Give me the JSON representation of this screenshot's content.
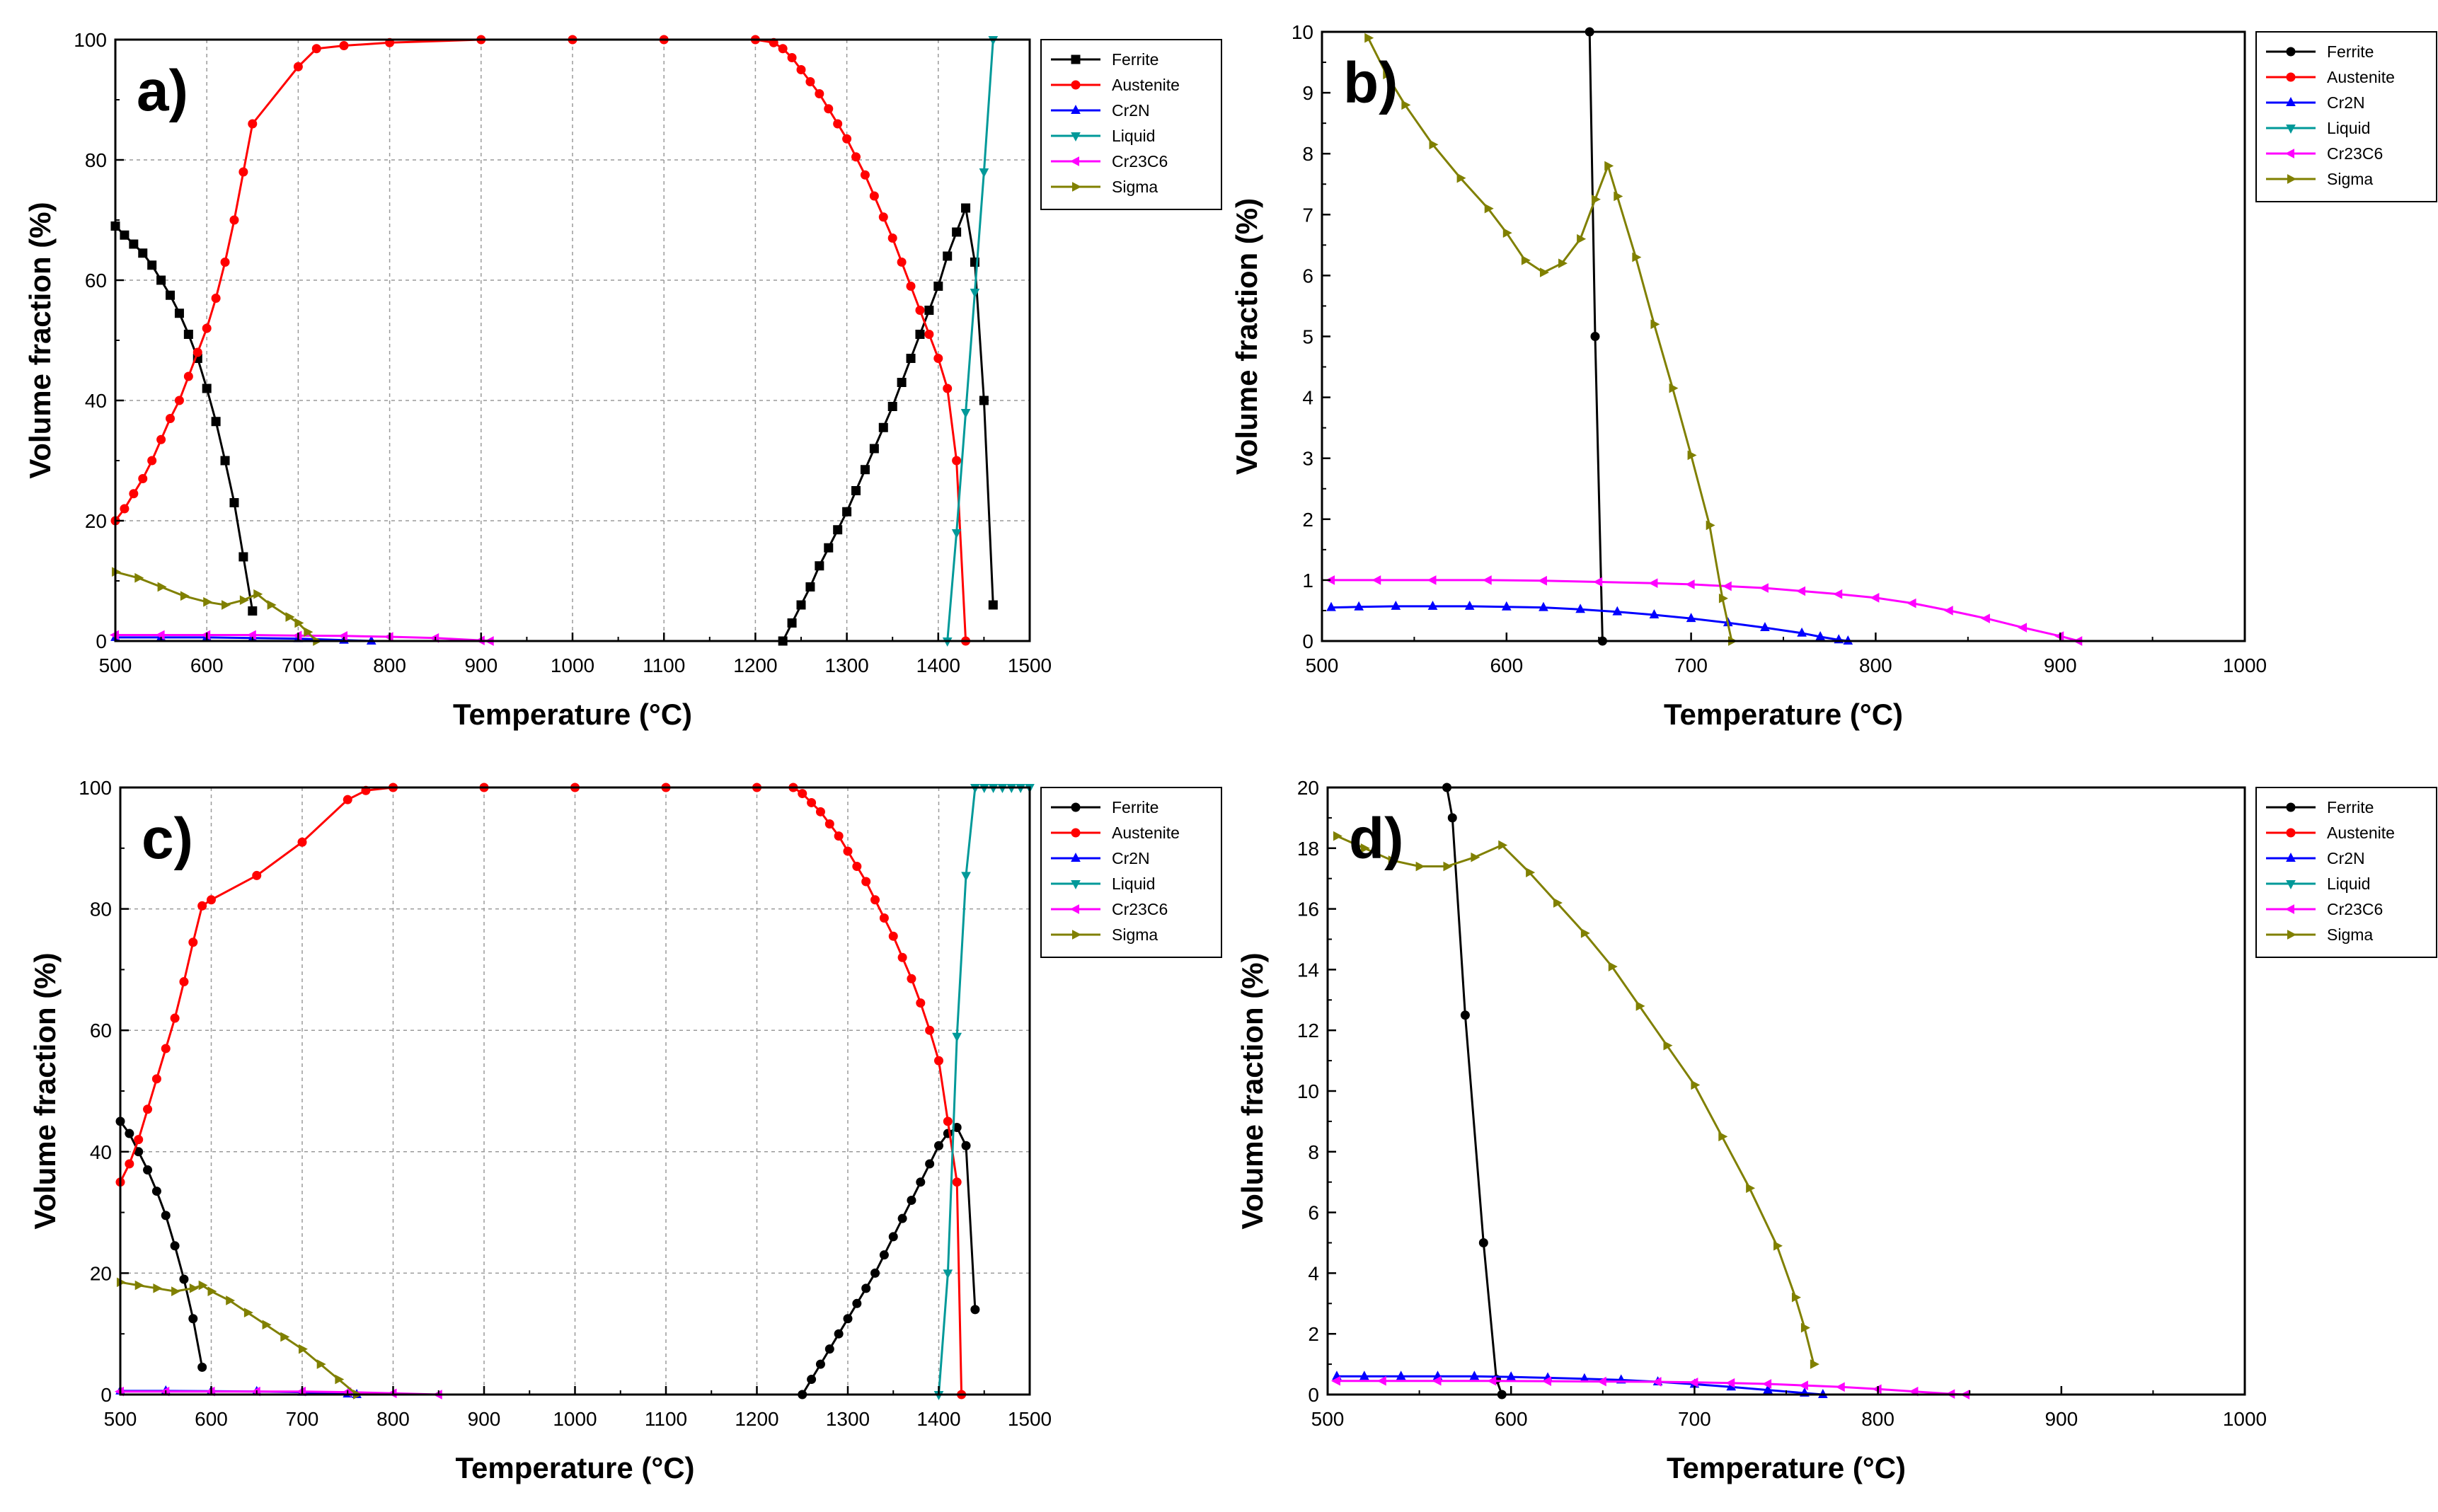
{
  "figure": {
    "background": "#ffffff"
  },
  "chart_data": [
    {
      "panel": "a)",
      "type": "line",
      "xlabel": "Temperature (°C)",
      "ylabel": "Volume fraction (%)",
      "xlim": [
        500,
        1500
      ],
      "ylim": [
        0,
        100
      ],
      "xticks": [
        "500",
        "600",
        "700",
        "800",
        "900",
        "1000",
        "1100",
        "1200",
        "1300",
        "1400",
        "1500"
      ],
      "yticks": [
        "0",
        "20",
        "40",
        "60",
        "80",
        "100"
      ],
      "grid": true,
      "legend_position": "top-right",
      "series": [
        {
          "name": "Ferrite",
          "color": "#000000",
          "marker": "square",
          "x": [
            500,
            510,
            520,
            530,
            540,
            550,
            560,
            570,
            580,
            590,
            600,
            610,
            620,
            630,
            640,
            650
          ],
          "y": [
            69,
            67.5,
            66,
            64.5,
            62.5,
            60,
            57.5,
            54.5,
            51,
            47,
            42,
            36.5,
            30,
            23,
            14,
            5
          ]
        },
        {
          "name": "Ferrite",
          "color": "#000000",
          "marker": "square",
          "x": [
            1230,
            1240,
            1250,
            1260,
            1270,
            1280,
            1290,
            1300,
            1310,
            1320,
            1330,
            1340,
            1350,
            1360,
            1370,
            1380,
            1390,
            1400,
            1410,
            1420,
            1430,
            1440,
            1450,
            1460
          ],
          "y": [
            0,
            3,
            6,
            9,
            12.5,
            15.5,
            18.5,
            21.5,
            25,
            28.5,
            32,
            35.5,
            39,
            43,
            47,
            51,
            55,
            59,
            64,
            68,
            72,
            63,
            40,
            6
          ]
        },
        {
          "name": "Austenite",
          "color": "#ff0000",
          "marker": "circle",
          "x": [
            500,
            510,
            520,
            530,
            540,
            550,
            560,
            570,
            580,
            590,
            600,
            610,
            620,
            630,
            640,
            650,
            700,
            720,
            750,
            800,
            900,
            1000,
            1100,
            1200,
            1220,
            1230,
            1240,
            1250,
            1260,
            1270,
            1280,
            1290,
            1300,
            1310,
            1320,
            1330,
            1340,
            1350,
            1360,
            1370,
            1380,
            1390,
            1400,
            1410,
            1420,
            1430
          ],
          "y": [
            20,
            22,
            24.5,
            27,
            30,
            33.5,
            37,
            40,
            44,
            48,
            52,
            57,
            63,
            70,
            78,
            86,
            95.5,
            98.5,
            99,
            99.5,
            100,
            100,
            100,
            100,
            99.5,
            98.5,
            97,
            95,
            93,
            91,
            88.5,
            86,
            83.5,
            80.5,
            77.5,
            74,
            70.5,
            67,
            63,
            59,
            55,
            51,
            47,
            42,
            30,
            0
          ]
        },
        {
          "name": "Cr2N",
          "color": "#0000ff",
          "marker": "triangle-up",
          "x": [
            500,
            550,
            600,
            650,
            700,
            750,
            780
          ],
          "y": [
            0.6,
            0.6,
            0.6,
            0.5,
            0.4,
            0.15,
            0
          ]
        },
        {
          "name": "Liquid",
          "color": "#009999",
          "marker": "triangle-down",
          "x": [
            1410,
            1420,
            1430,
            1440,
            1450,
            1460
          ],
          "y": [
            0,
            18,
            38,
            58,
            78,
            100
          ]
        },
        {
          "name": "Cr23C6",
          "color": "#ff00ff",
          "marker": "triangle-left",
          "x": [
            500,
            550,
            600,
            650,
            700,
            750,
            800,
            850,
            900,
            910
          ],
          "y": [
            1,
            1,
            1,
            1,
            0.9,
            0.85,
            0.7,
            0.5,
            0.1,
            0
          ]
        },
        {
          "name": "Sigma",
          "color": "#808000",
          "marker": "triangle-right",
          "x": [
            500,
            525,
            550,
            575,
            600,
            620,
            640,
            655,
            670,
            690,
            700,
            710,
            720
          ],
          "y": [
            11.5,
            10.5,
            9,
            7.5,
            6.5,
            6,
            6.8,
            7.8,
            6,
            4,
            3,
            1.5,
            0
          ]
        }
      ]
    },
    {
      "panel": "b)",
      "type": "line",
      "xlabel": "Temperature (°C)",
      "ylabel": "Volume fraction (%)",
      "xlim": [
        500,
        1000
      ],
      "ylim": [
        0,
        10
      ],
      "xticks": [
        "500",
        "600",
        "700",
        "800",
        "900",
        "1000"
      ],
      "yticks": [
        "0",
        "1",
        "2",
        "3",
        "4",
        "5",
        "6",
        "7",
        "8",
        "9",
        "10"
      ],
      "grid": false,
      "legend_position": "top-right",
      "series": [
        {
          "name": "Ferrite",
          "color": "#000000",
          "marker": "circle",
          "x": [
            645,
            648,
            652
          ],
          "y": [
            10,
            5,
            0
          ]
        },
        {
          "name": "Austenite",
          "color": "#ff0000",
          "marker": "circle",
          "x": [],
          "y": []
        },
        {
          "name": "Cr2N",
          "color": "#0000ff",
          "marker": "triangle-up",
          "x": [
            505,
            520,
            540,
            560,
            580,
            600,
            620,
            640,
            660,
            680,
            700,
            720,
            740,
            760,
            770,
            780,
            785
          ],
          "y": [
            0.55,
            0.56,
            0.57,
            0.57,
            0.57,
            0.56,
            0.55,
            0.52,
            0.48,
            0.43,
            0.37,
            0.3,
            0.22,
            0.13,
            0.07,
            0.02,
            0
          ]
        },
        {
          "name": "Liquid",
          "color": "#009999",
          "marker": "triangle-down",
          "x": [],
          "y": []
        },
        {
          "name": "Cr23C6",
          "color": "#ff00ff",
          "marker": "triangle-left",
          "x": [
            505,
            530,
            560,
            590,
            620,
            650,
            680,
            700,
            720,
            740,
            760,
            780,
            800,
            820,
            840,
            860,
            880,
            900,
            910
          ],
          "y": [
            1,
            1,
            1,
            1,
            0.99,
            0.97,
            0.95,
            0.93,
            0.9,
            0.87,
            0.82,
            0.77,
            0.71,
            0.62,
            0.5,
            0.37,
            0.22,
            0.08,
            0
          ]
        },
        {
          "name": "Sigma",
          "color": "#808000",
          "marker": "triangle-right",
          "x": [
            525,
            535,
            545,
            560,
            575,
            590,
            600,
            610,
            620,
            630,
            640,
            648,
            655,
            660,
            670,
            680,
            690,
            700,
            710,
            717,
            722
          ],
          "y": [
            9.9,
            9.3,
            8.8,
            8.15,
            7.6,
            7.1,
            6.7,
            6.25,
            6.05,
            6.2,
            6.6,
            7.25,
            7.8,
            7.3,
            6.3,
            5.2,
            4.15,
            3.05,
            1.9,
            0.7,
            0
          ]
        }
      ]
    },
    {
      "panel": "c)",
      "type": "line",
      "xlabel": "Temperature (°C)",
      "ylabel": "Volume fraction (%)",
      "xlim": [
        500,
        1500
      ],
      "ylim": [
        0,
        100
      ],
      "xticks": [
        "500",
        "600",
        "700",
        "800",
        "900",
        "1000",
        "1100",
        "1200",
        "1300",
        "1400",
        "1500"
      ],
      "yticks": [
        "0",
        "20",
        "40",
        "60",
        "80",
        "100"
      ],
      "grid": true,
      "legend_position": "top-right",
      "series": [
        {
          "name": "Ferrite",
          "color": "#000000",
          "marker": "circle",
          "x": [
            500,
            510,
            520,
            530,
            540,
            550,
            560,
            570,
            580,
            590
          ],
          "y": [
            45,
            43,
            40,
            37,
            33.5,
            29.5,
            24.5,
            19,
            12.5,
            4.5
          ]
        },
        {
          "name": "Ferrite",
          "color": "#000000",
          "marker": "circle",
          "x": [
            1250,
            1260,
            1270,
            1280,
            1290,
            1300,
            1310,
            1320,
            1330,
            1340,
            1350,
            1360,
            1370,
            1380,
            1390,
            1400,
            1410,
            1420,
            1430,
            1440
          ],
          "y": [
            0,
            2.5,
            5,
            7.5,
            10,
            12.5,
            15,
            17.5,
            20,
            23,
            26,
            29,
            32,
            35,
            38,
            41,
            43,
            44,
            41,
            14
          ]
        },
        {
          "name": "Austenite",
          "color": "#ff0000",
          "marker": "circle",
          "x": [
            500,
            510,
            520,
            530,
            540,
            550,
            560,
            570,
            580,
            590,
            600,
            650,
            700,
            750,
            770,
            800,
            900,
            1000,
            1100,
            1200,
            1240,
            1250,
            1260,
            1270,
            1280,
            1290,
            1300,
            1310,
            1320,
            1330,
            1340,
            1350,
            1360,
            1370,
            1380,
            1390,
            1400,
            1410,
            1420,
            1425
          ],
          "y": [
            35,
            38,
            42,
            47,
            52,
            57,
            62,
            68,
            74.5,
            80.5,
            81.5,
            85.5,
            91,
            98,
            99.5,
            100,
            100,
            100,
            100,
            100,
            100,
            99,
            97.5,
            96,
            94,
            92,
            89.5,
            87,
            84.5,
            81.5,
            78.5,
            75.5,
            72,
            68.5,
            64.5,
            60,
            55,
            45,
            35,
            0
          ]
        },
        {
          "name": "Cr2N",
          "color": "#0000ff",
          "marker": "triangle-up",
          "x": [
            500,
            550,
            600,
            650,
            700,
            750,
            760
          ],
          "y": [
            0.6,
            0.6,
            0.55,
            0.5,
            0.4,
            0.1,
            0
          ]
        },
        {
          "name": "Liquid",
          "color": "#009999",
          "marker": "triangle-down",
          "x": [
            1400,
            1410,
            1420,
            1430,
            1440,
            1450,
            1460,
            1470,
            1480,
            1490,
            1500
          ],
          "y": [
            0,
            20,
            59,
            85.5,
            100,
            100,
            100,
            100,
            100,
            100,
            100
          ]
        },
        {
          "name": "Cr23C6",
          "color": "#ff00ff",
          "marker": "triangle-left",
          "x": [
            500,
            550,
            600,
            650,
            700,
            750,
            800,
            850
          ],
          "y": [
            0.5,
            0.5,
            0.5,
            0.5,
            0.5,
            0.4,
            0.2,
            0
          ]
        },
        {
          "name": "Sigma",
          "color": "#808000",
          "marker": "triangle-right",
          "x": [
            500,
            520,
            540,
            560,
            580,
            590,
            600,
            620,
            640,
            660,
            680,
            700,
            720,
            740,
            760
          ],
          "y": [
            18.5,
            18,
            17.5,
            17,
            17.5,
            18,
            17,
            15.5,
            13.5,
            11.5,
            9.5,
            7.5,
            5,
            2.5,
            0
          ]
        }
      ]
    },
    {
      "panel": "d)",
      "type": "line",
      "xlabel": "Temperature (°C)",
      "ylabel": "Volume fraction (%)",
      "xlim": [
        500,
        1000
      ],
      "ylim": [
        0,
        20
      ],
      "xticks": [
        "500",
        "600",
        "700",
        "800",
        "900",
        "1000"
      ],
      "yticks": [
        "0",
        "2",
        "4",
        "6",
        "8",
        "10",
        "12",
        "14",
        "16",
        "18",
        "20"
      ],
      "grid": false,
      "legend_position": "top-right",
      "series": [
        {
          "name": "Ferrite",
          "color": "#000000",
          "marker": "circle",
          "x": [
            565,
            568,
            575,
            585,
            592,
            595
          ],
          "y": [
            20,
            19,
            12.5,
            5,
            0.5,
            0
          ]
        },
        {
          "name": "Austenite",
          "color": "#ff0000",
          "marker": "circle",
          "x": [],
          "y": []
        },
        {
          "name": "Cr2N",
          "color": "#0000ff",
          "marker": "triangle-up",
          "x": [
            505,
            520,
            540,
            560,
            580,
            600,
            620,
            640,
            660,
            680,
            700,
            720,
            740,
            760,
            770
          ],
          "y": [
            0.6,
            0.6,
            0.6,
            0.6,
            0.6,
            0.58,
            0.55,
            0.52,
            0.48,
            0.42,
            0.34,
            0.25,
            0.15,
            0.05,
            0
          ]
        },
        {
          "name": "Liquid",
          "color": "#009999",
          "marker": "triangle-down",
          "x": [],
          "y": []
        },
        {
          "name": "Cr23C6",
          "color": "#ff00ff",
          "marker": "triangle-left",
          "x": [
            505,
            530,
            560,
            590,
            620,
            650,
            680,
            700,
            720,
            740,
            760,
            780,
            800,
            820,
            840,
            848
          ],
          "y": [
            0.45,
            0.45,
            0.45,
            0.45,
            0.44,
            0.43,
            0.42,
            0.4,
            0.38,
            0.35,
            0.3,
            0.25,
            0.18,
            0.1,
            0.02,
            0
          ]
        },
        {
          "name": "Sigma",
          "color": "#808000",
          "marker": "triangle-right",
          "x": [
            505,
            520,
            535,
            550,
            565,
            580,
            595,
            610,
            625,
            640,
            655,
            670,
            685,
            700,
            715,
            730,
            745,
            755,
            760,
            765
          ],
          "y": [
            18.4,
            18,
            17.6,
            17.4,
            17.4,
            17.7,
            18.1,
            17.2,
            16.2,
            15.2,
            14.1,
            12.8,
            11.5,
            10.2,
            8.5,
            6.8,
            4.9,
            3.2,
            2.2,
            1
          ]
        }
      ]
    }
  ]
}
